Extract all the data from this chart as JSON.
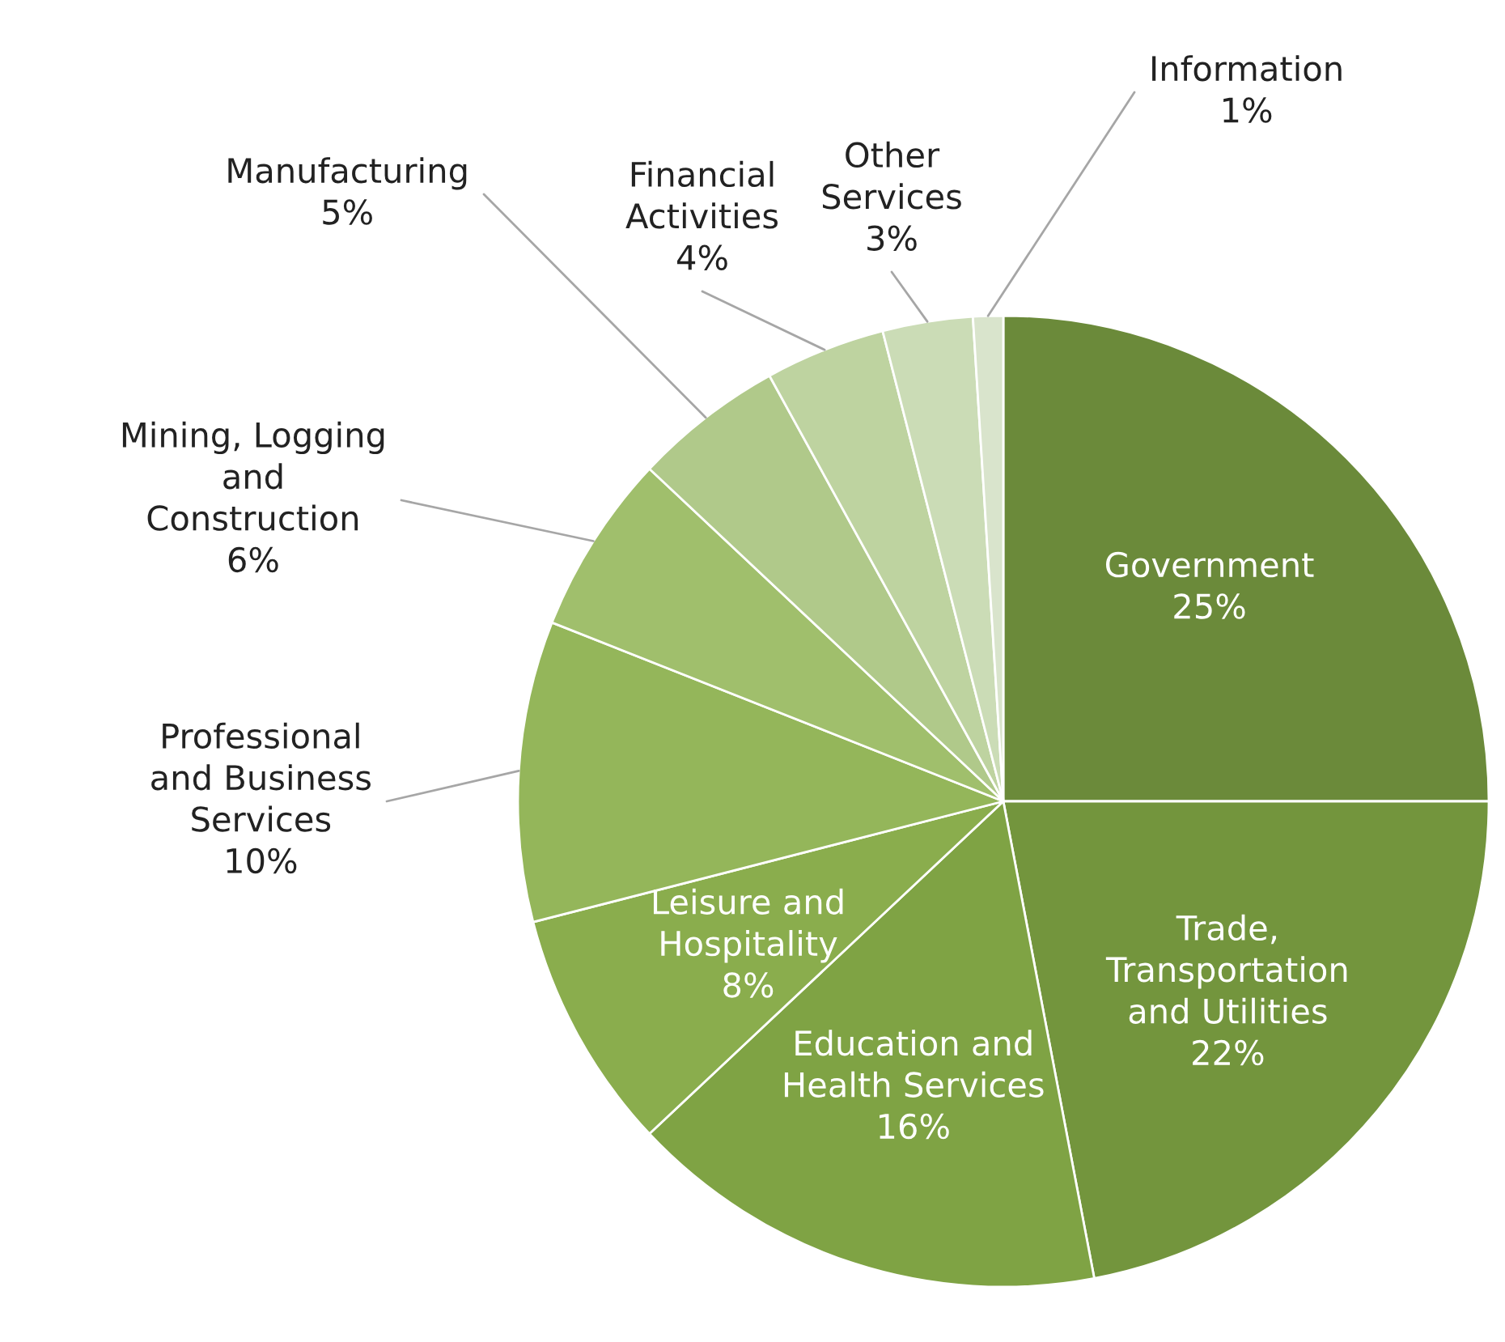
{
  "chart_data": {
    "type": "pie",
    "categories": [
      "Government",
      "Trade,\nTransportation\nand Utilities",
      "Education and\nHealth Services",
      "Leisure and\nHospitality",
      "Professional\nand Business\nServices",
      "Mining, Logging\nand\nConstruction",
      "Manufacturing",
      "Financial\nActivities",
      "Other\nServices",
      "Information"
    ],
    "values": [
      25,
      22,
      16,
      8,
      10,
      6,
      5,
      4,
      3,
      1
    ],
    "value_labels": [
      "25%",
      "22%",
      "16%",
      "8%",
      "10%",
      "6%",
      "5%",
      "4%",
      "3%",
      "1%"
    ],
    "colors": [
      "#6b8a3a",
      "#73953d",
      "#7fa344",
      "#8aad4d",
      "#94b65a",
      "#a0bf6c",
      "#b0c98a",
      "#bed3a0",
      "#cbdcb6",
      "#d9e4cc"
    ],
    "legend": false
  }
}
